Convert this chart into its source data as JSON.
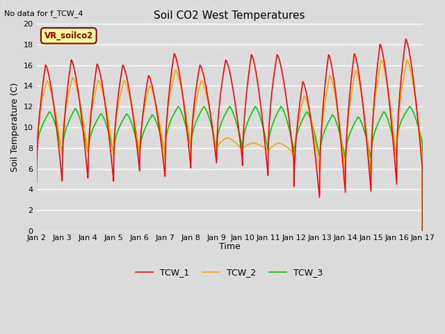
{
  "title": "Soil CO2 West Temperatures",
  "ylabel": "Soil Temperature (C)",
  "xlabel": "Time",
  "note": "No data for f_TCW_4",
  "legend_box_label": "VR_soilco2",
  "legend_box_bg": "#FFFF99",
  "legend_box_edge": "#8B0000",
  "ylim": [
    0,
    20
  ],
  "fig_bg": "#DCDCDC",
  "plot_bg": "#DCDCDC",
  "line_colors": {
    "TCW_1": "#FF0000",
    "TCW_2": "#FFA500",
    "TCW_3": "#00CC00"
  },
  "line_width": 1.2,
  "xtick_labels": [
    "Jan 2",
    "Jan 3",
    "Jan 4",
    "Jan 5",
    "Jan 6",
    "Jan 7",
    "Jan 8",
    "Jan 9",
    "Jan 10",
    "Jan 11",
    "Jan 12",
    "Jan 13",
    "Jan 14",
    "Jan 15",
    "Jan 16",
    "Jan 17"
  ],
  "tcw1_peaks": [
    16.0,
    16.5,
    16.1,
    16.0,
    15.0,
    17.1,
    16.0,
    16.5,
    17.0,
    17.0,
    14.4,
    17.0,
    17.1,
    18.0,
    18.5
  ],
  "tcw1_troughs": [
    4.7,
    5.0,
    4.7,
    6.0,
    5.2,
    6.0,
    6.5,
    6.8,
    5.3,
    6.7,
    3.2,
    3.7,
    3.8,
    4.5,
    5.9
  ],
  "tcw1_peak_pos": [
    0.35,
    0.35,
    0.35,
    0.35,
    0.35,
    0.35,
    0.35,
    0.35,
    0.35,
    0.35,
    0.35,
    0.35,
    0.35,
    0.35,
    0.35
  ],
  "tcw2_peaks": [
    14.5,
    14.8,
    14.5,
    14.5,
    14.0,
    15.5,
    14.5,
    9.0,
    8.5,
    8.5,
    13.0,
    15.0,
    15.5,
    16.5,
    16.5
  ],
  "tcw2_troughs": [
    7.2,
    7.5,
    7.2,
    7.5,
    7.0,
    8.0,
    7.5,
    7.8,
    7.8,
    7.5,
    5.8,
    5.5,
    5.5,
    6.5,
    7.0
  ],
  "tcw2_peak_pos": [
    0.4,
    0.4,
    0.4,
    0.4,
    0.4,
    0.4,
    0.4,
    0.4,
    0.4,
    0.4,
    0.4,
    0.4,
    0.4,
    0.4,
    0.4
  ],
  "tcw3_peaks": [
    11.5,
    11.8,
    11.3,
    11.3,
    11.2,
    12.0,
    12.0,
    12.0,
    12.0,
    12.0,
    11.5,
    11.2,
    11.0,
    11.5,
    12.0
  ],
  "tcw3_troughs": [
    7.5,
    7.5,
    7.5,
    7.5,
    7.3,
    8.0,
    8.0,
    8.0,
    7.8,
    7.8,
    7.2,
    7.0,
    7.0,
    7.2,
    8.5
  ],
  "tcw3_peak_pos": [
    0.5,
    0.5,
    0.5,
    0.5,
    0.5,
    0.5,
    0.5,
    0.5,
    0.5,
    0.5,
    0.5,
    0.5,
    0.5,
    0.5,
    0.5
  ]
}
